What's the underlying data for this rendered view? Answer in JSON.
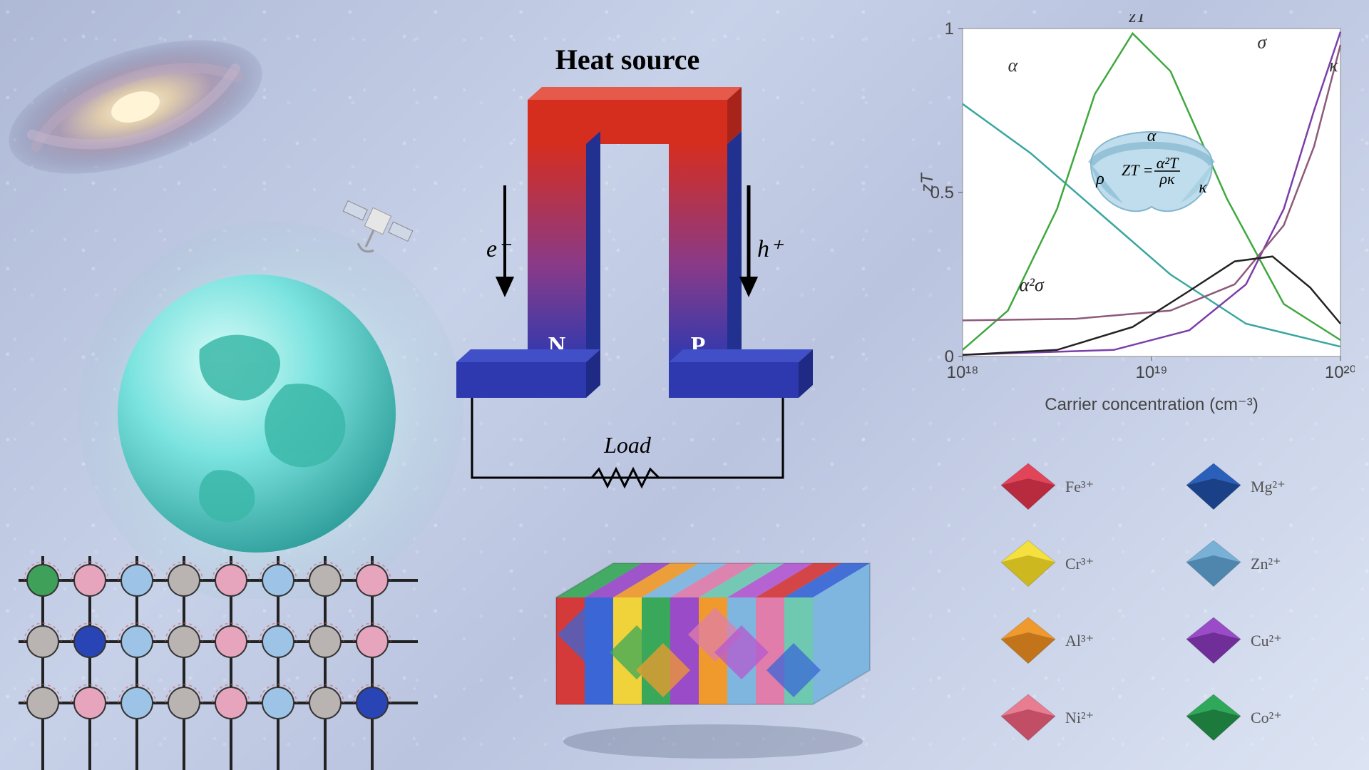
{
  "thermo": {
    "heat_label": "Heat source",
    "load_label": "Load",
    "n_label": "N",
    "p_label": "P",
    "e_label": "e⁻",
    "h_label": "h⁺",
    "hot_color": "#d52e1f",
    "cold_color": "#2e39b0",
    "label_color": "#000000",
    "np_text_color": "#ffffff",
    "title_fontsize": 40,
    "italic_fontsize": 34,
    "np_fontsize": 34
  },
  "zt_chart": {
    "bg": "#ffffff",
    "border": "#888888",
    "y_label": "zT",
    "x_label": "Carrier concentration (cm⁻³)",
    "x_ticks": [
      "10¹⁸",
      "10¹⁹",
      "10²⁰"
    ],
    "y_ticks": [
      "0",
      "0.5",
      "1"
    ],
    "curves": {
      "alpha": {
        "label": "α",
        "color": "#3aa6a0",
        "pts": [
          [
            0,
            0.77
          ],
          [
            0.18,
            0.62
          ],
          [
            0.35,
            0.45
          ],
          [
            0.55,
            0.25
          ],
          [
            0.75,
            0.1
          ],
          [
            1,
            0.03
          ]
        ]
      },
      "zT": {
        "label": "zT",
        "color": "#3fa83f",
        "pts": [
          [
            0,
            0.02
          ],
          [
            0.12,
            0.14
          ],
          [
            0.25,
            0.45
          ],
          [
            0.35,
            0.8
          ],
          [
            0.45,
            0.985
          ],
          [
            0.55,
            0.87
          ],
          [
            0.7,
            0.48
          ],
          [
            0.85,
            0.16
          ],
          [
            1,
            0.05
          ]
        ]
      },
      "sigma": {
        "label": "σ",
        "color": "#7a3fa8",
        "pts": [
          [
            0,
            0.005
          ],
          [
            0.4,
            0.02
          ],
          [
            0.6,
            0.08
          ],
          [
            0.75,
            0.22
          ],
          [
            0.85,
            0.45
          ],
          [
            0.93,
            0.75
          ],
          [
            1,
            0.99
          ]
        ]
      },
      "kappa": {
        "label": "κ",
        "color": "#8d5a7a",
        "pts": [
          [
            0,
            0.11
          ],
          [
            0.3,
            0.115
          ],
          [
            0.55,
            0.14
          ],
          [
            0.72,
            0.22
          ],
          [
            0.85,
            0.4
          ],
          [
            0.93,
            0.64
          ],
          [
            1,
            0.95
          ]
        ]
      },
      "a2sigma": {
        "label": "α²σ",
        "color": "#222222",
        "pts": [
          [
            0,
            0.005
          ],
          [
            0.25,
            0.02
          ],
          [
            0.45,
            0.09
          ],
          [
            0.6,
            0.2
          ],
          [
            0.72,
            0.29
          ],
          [
            0.82,
            0.305
          ],
          [
            0.92,
            0.21
          ],
          [
            1,
            0.1
          ]
        ]
      }
    },
    "formula": "ZT = α²T / ρκ",
    "ring_labels": {
      "alpha": "α",
      "rho": "ρ",
      "kappa": "κ"
    },
    "label_loc": {
      "alpha": [
        0.12,
        0.87
      ],
      "zT": [
        0.44,
        1.02
      ],
      "sigma": [
        0.78,
        0.94
      ],
      "kappa": [
        0.97,
        0.87
      ],
      "a2sigma": [
        0.15,
        0.2
      ]
    },
    "label_fontsize": 26,
    "axis_fontsize": 24,
    "ring_color": "#8fc2d8",
    "formula_fontsize": 22
  },
  "ions": {
    "items": [
      {
        "label": "Fe³⁺",
        "top": "#e2455a",
        "side": "#b82a3e"
      },
      {
        "label": "Mg²⁺",
        "top": "#2a5fba",
        "side": "#1a4187"
      },
      {
        "label": "Cr³⁺",
        "top": "#f5e13d",
        "side": "#cdb820"
      },
      {
        "label": "Zn²⁺",
        "top": "#79b1d6",
        "side": "#4f86ad"
      },
      {
        "label": "Al³⁺",
        "top": "#f09a2d",
        "side": "#c2741a"
      },
      {
        "label": "Cu²⁺",
        "top": "#9a4bc7",
        "side": "#6f2e98"
      },
      {
        "label": "Ni²⁺",
        "top": "#e87d91",
        "side": "#c24e66"
      },
      {
        "label": "Co²⁺",
        "top": "#2fa85a",
        "side": "#1c7a3d"
      }
    ],
    "label_color": "#555",
    "label_fontsize": 22
  },
  "lattice": {
    "rows": 3,
    "cols": 8,
    "line_color": "#222",
    "colors": {
      "green": "#3fa05a",
      "blue": "#2944b5",
      "pink": "#e7a4bd",
      "lblue": "#9dc4e6",
      "grey": "#b9b4b1"
    },
    "special": {
      "0,0": "green",
      "1,1": "blue",
      "2,7": "blue"
    }
  },
  "earth": {
    "ocean": "#7be3df",
    "land": "#3bb8a8",
    "glow": "#bde9ea"
  },
  "block3d": {
    "palette": [
      "#d53a3a",
      "#3a67d5",
      "#f0d23a",
      "#3aa85a",
      "#9a4bc7",
      "#f09a2d",
      "#7fb6e0",
      "#e07daa",
      "#6fc9b0",
      "#b45ad0"
    ]
  }
}
